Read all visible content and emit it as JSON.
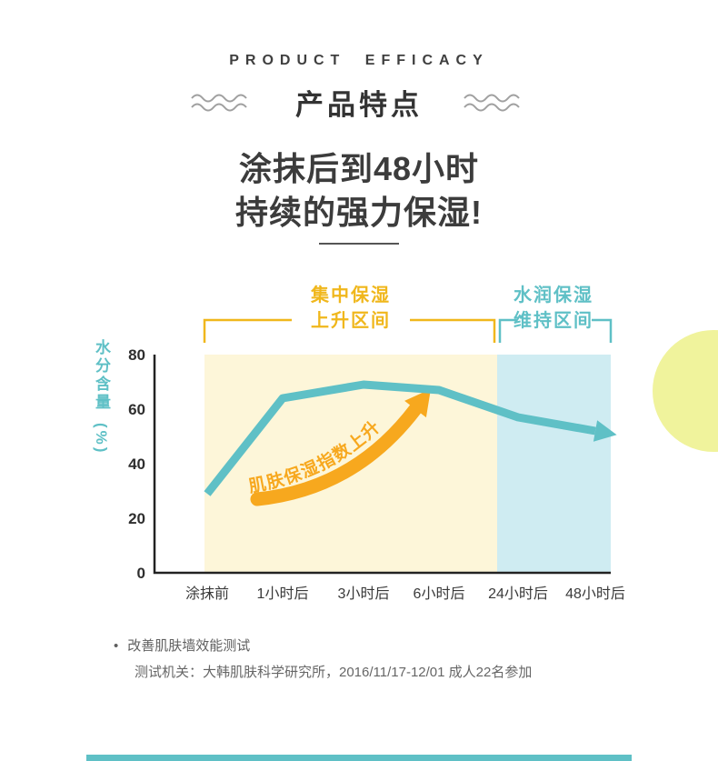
{
  "header": {
    "eyebrow": "PRODUCT EFFICACY",
    "title": "产品特点"
  },
  "headline": {
    "line1": "涂抹后到48小时",
    "line2": "持续的强力保湿!"
  },
  "chart_data": {
    "type": "line",
    "title": "",
    "categories": [
      "涂抹前",
      "1小时后",
      "3小时后",
      "6小时后",
      "24小时后",
      "48小时后"
    ],
    "values": [
      29,
      64,
      69,
      67,
      57,
      52
    ],
    "ylabel": "水分含量",
    "ylabel_unit": "(%)",
    "yticks": [
      80,
      60,
      40,
      20,
      0
    ],
    "ylim": [
      0,
      80
    ],
    "grid": "off",
    "line_color": "#5fc0c6",
    "arrow_color": "#f7a81e",
    "annotation": "肌肤保湿指数上升",
    "regions": [
      {
        "label_line1": "集中保湿",
        "label_line2": "上升区间",
        "color": "#fdf6d9",
        "label_color": "#f0b71c",
        "categories_covered": [
          "涂抹前",
          "1小时后",
          "3小时后",
          "6小时后"
        ]
      },
      {
        "label_line1": "水润保湿",
        "label_line2": "维持区间",
        "color": "#cfecf2",
        "label_color": "#5fc0c6",
        "categories_covered": [
          "24小时后",
          "48小时后"
        ]
      }
    ]
  },
  "footnote": {
    "bullet": "•",
    "line1": "改善肌肤墙效能测试",
    "line2": "测试机关：大韩肌肤科学研究所，2016/11/17-12/01 成人22名参加"
  },
  "decor": {
    "bar_color": "#5fc0c6",
    "circle_color": "#f0f39c"
  }
}
